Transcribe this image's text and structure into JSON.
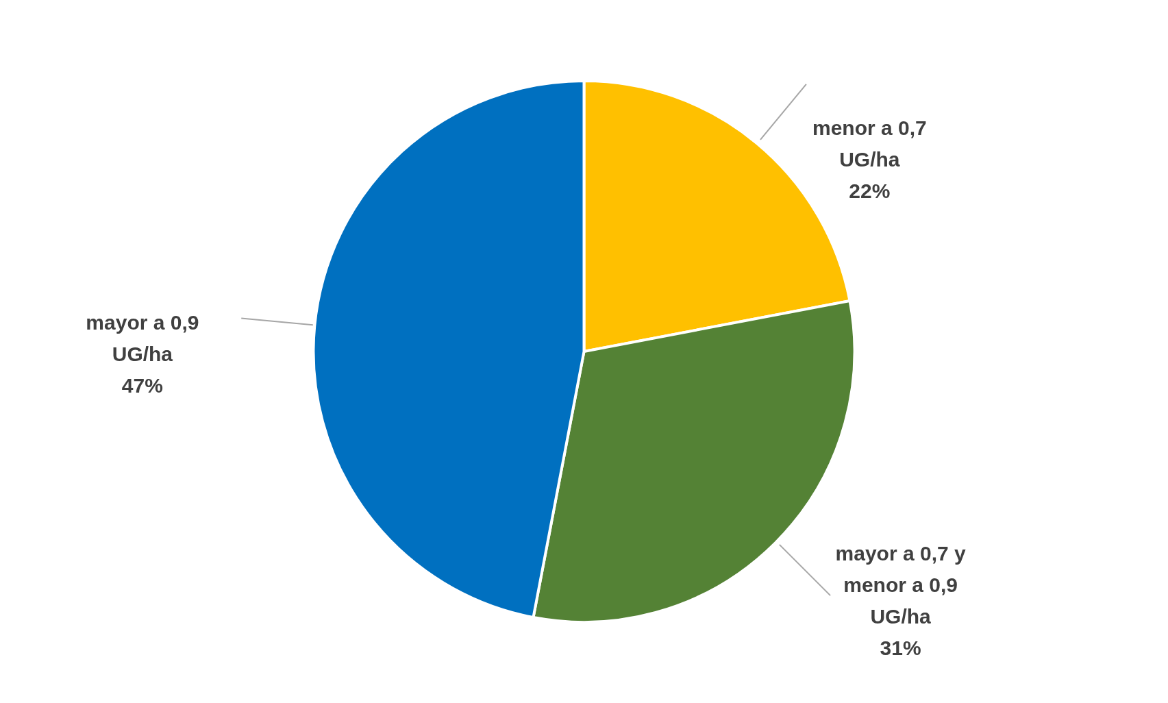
{
  "chart_data": {
    "type": "pie",
    "categories": [
      "menor a 0,7 UG/ha",
      "mayor a 0,7 y menor a 0,9 UG/ha",
      "mayor a 0,9 UG/ha"
    ],
    "values": [
      22,
      31,
      47
    ],
    "colors": [
      "#ffc000",
      "#548235",
      "#0070c0"
    ],
    "value_labels": [
      "22%",
      "31%",
      "47%"
    ],
    "legend": false
  }
}
